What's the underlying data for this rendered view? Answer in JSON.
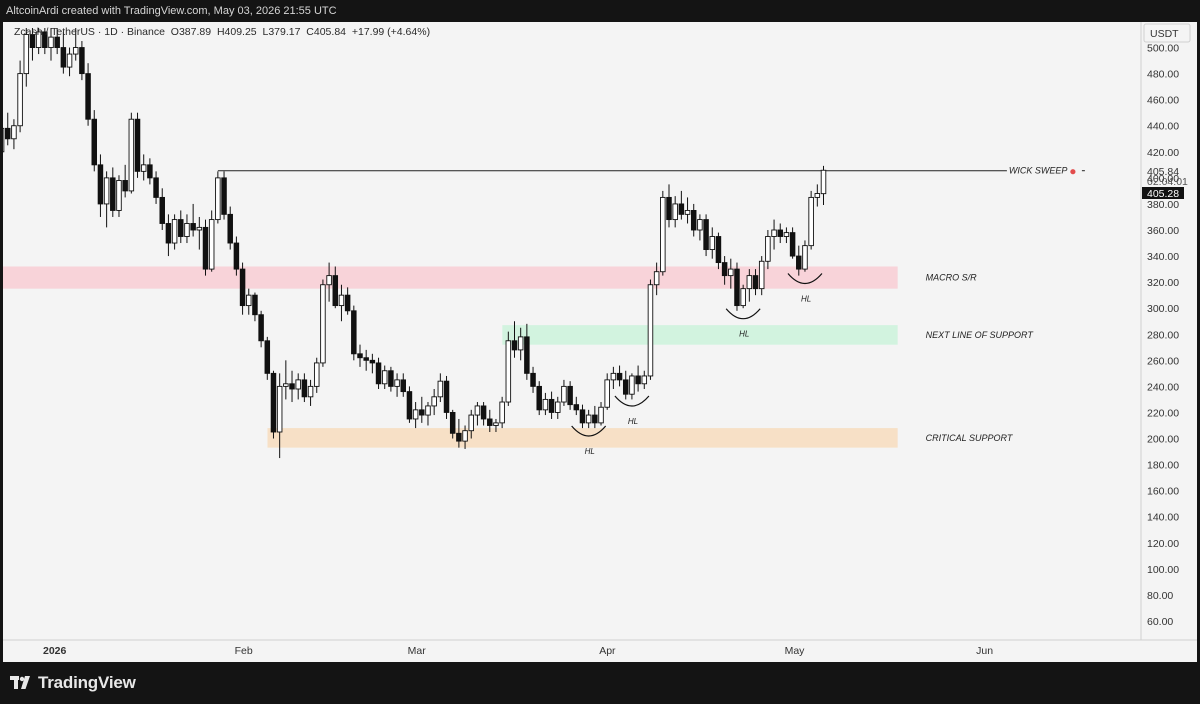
{
  "header": {
    "attribution": "AltcoinArdi created with TradingView.com, May 03, 2026 21:55 UTC"
  },
  "legend": {
    "symbol": "Zcash / TetherUS · 1D · Binance",
    "open": "O387.89",
    "high": "H409.25",
    "low": "L379.17",
    "close": "C405.84",
    "change": "+17.99 (+4.64%)"
  },
  "price_axis": {
    "currency": "USDT",
    "last_price": "405.84",
    "countdown": "02:04:01",
    "marker_price": "405.28"
  },
  "branding": {
    "name": "TradingView"
  },
  "colors": {
    "macro_zone": "#f8d3d9",
    "support_zone": "#d2f3df",
    "critical_zone": "#f7e0c6",
    "candle_up": "#ffffff",
    "candle_down": "#111111"
  },
  "chart_data": {
    "type": "candlestick",
    "ylim": [
      50,
      515
    ],
    "y_ticks": [
      "500.00",
      "480.00",
      "460.00",
      "440.00",
      "420.00",
      "400.00",
      "380.00",
      "360.00",
      "340.00",
      "320.00",
      "300.00",
      "280.00",
      "260.00",
      "240.00",
      "220.00",
      "200.00",
      "180.00",
      "160.00",
      "140.00",
      "120.00",
      "100.00",
      "80.00",
      "60.00"
    ],
    "x_ticks": [
      "2026",
      "Feb",
      "Mar",
      "Apr",
      "May",
      "Jun"
    ],
    "x_tick_dates": [
      "2026-01-01",
      "2026-02-01",
      "2026-03-01",
      "2026-04-01",
      "2026-05-01",
      "2026-06-01"
    ],
    "candles": [
      {
        "date": "2025-12-23",
        "o": 415,
        "h": 432,
        "l": 402,
        "c": 420
      },
      {
        "date": "2025-12-24",
        "o": 420,
        "h": 445,
        "l": 415,
        "c": 438
      },
      {
        "date": "2025-12-25",
        "o": 438,
        "h": 450,
        "l": 425,
        "c": 430
      },
      {
        "date": "2025-12-26",
        "o": 430,
        "h": 445,
        "l": 422,
        "c": 440
      },
      {
        "date": "2025-12-27",
        "o": 440,
        "h": 490,
        "l": 435,
        "c": 480
      },
      {
        "date": "2025-12-28",
        "o": 480,
        "h": 515,
        "l": 470,
        "c": 510
      },
      {
        "date": "2025-12-29",
        "o": 510,
        "h": 515,
        "l": 490,
        "c": 500
      },
      {
        "date": "2025-12-30",
        "o": 500,
        "h": 515,
        "l": 495,
        "c": 512
      },
      {
        "date": "2025-12-31",
        "o": 512,
        "h": 515,
        "l": 495,
        "c": 500
      },
      {
        "date": "2026-01-01",
        "o": 500,
        "h": 515,
        "l": 490,
        "c": 508
      },
      {
        "date": "2026-01-02",
        "o": 508,
        "h": 515,
        "l": 495,
        "c": 500
      },
      {
        "date": "2026-01-03",
        "o": 500,
        "h": 512,
        "l": 480,
        "c": 485
      },
      {
        "date": "2026-01-04",
        "o": 485,
        "h": 500,
        "l": 478,
        "c": 495
      },
      {
        "date": "2026-01-05",
        "o": 495,
        "h": 515,
        "l": 490,
        "c": 500
      },
      {
        "date": "2026-01-06",
        "o": 500,
        "h": 505,
        "l": 475,
        "c": 480
      },
      {
        "date": "2026-01-07",
        "o": 480,
        "h": 488,
        "l": 440,
        "c": 445
      },
      {
        "date": "2026-01-08",
        "o": 445,
        "h": 452,
        "l": 405,
        "c": 410
      },
      {
        "date": "2026-01-09",
        "o": 410,
        "h": 418,
        "l": 370,
        "c": 380
      },
      {
        "date": "2026-01-10",
        "o": 380,
        "h": 405,
        "l": 362,
        "c": 400
      },
      {
        "date": "2026-01-11",
        "o": 400,
        "h": 408,
        "l": 370,
        "c": 375
      },
      {
        "date": "2026-01-12",
        "o": 375,
        "h": 402,
        "l": 370,
        "c": 398
      },
      {
        "date": "2026-01-13",
        "o": 398,
        "h": 410,
        "l": 385,
        "c": 390
      },
      {
        "date": "2026-01-14",
        "o": 390,
        "h": 450,
        "l": 388,
        "c": 445
      },
      {
        "date": "2026-01-15",
        "o": 445,
        "h": 450,
        "l": 400,
        "c": 405
      },
      {
        "date": "2026-01-16",
        "o": 405,
        "h": 418,
        "l": 398,
        "c": 410
      },
      {
        "date": "2026-01-17",
        "o": 410,
        "h": 415,
        "l": 395,
        "c": 400
      },
      {
        "date": "2026-01-18",
        "o": 400,
        "h": 405,
        "l": 380,
        "c": 385
      },
      {
        "date": "2026-01-19",
        "o": 385,
        "h": 392,
        "l": 360,
        "c": 365
      },
      {
        "date": "2026-01-20",
        "o": 365,
        "h": 372,
        "l": 340,
        "c": 350
      },
      {
        "date": "2026-01-21",
        "o": 350,
        "h": 372,
        "l": 345,
        "c": 368
      },
      {
        "date": "2026-01-22",
        "o": 368,
        "h": 375,
        "l": 350,
        "c": 355
      },
      {
        "date": "2026-01-23",
        "o": 355,
        "h": 372,
        "l": 350,
        "c": 365
      },
      {
        "date": "2026-01-24",
        "o": 365,
        "h": 380,
        "l": 355,
        "c": 360
      },
      {
        "date": "2026-01-25",
        "o": 360,
        "h": 370,
        "l": 345,
        "c": 362
      },
      {
        "date": "2026-01-26",
        "o": 362,
        "h": 368,
        "l": 325,
        "c": 330
      },
      {
        "date": "2026-01-27",
        "o": 330,
        "h": 375,
        "l": 328,
        "c": 368
      },
      {
        "date": "2026-01-28",
        "o": 368,
        "h": 405,
        "l": 365,
        "c": 400
      },
      {
        "date": "2026-01-29",
        "o": 400,
        "h": 405,
        "l": 368,
        "c": 372
      },
      {
        "date": "2026-01-30",
        "o": 372,
        "h": 378,
        "l": 345,
        "c": 350
      },
      {
        "date": "2026-01-31",
        "o": 350,
        "h": 355,
        "l": 325,
        "c": 330
      },
      {
        "date": "2026-02-01",
        "o": 330,
        "h": 335,
        "l": 295,
        "c": 302
      },
      {
        "date": "2026-02-02",
        "o": 302,
        "h": 315,
        "l": 295,
        "c": 310
      },
      {
        "date": "2026-02-03",
        "o": 310,
        "h": 312,
        "l": 290,
        "c": 295
      },
      {
        "date": "2026-02-04",
        "o": 295,
        "h": 298,
        "l": 270,
        "c": 275
      },
      {
        "date": "2026-02-05",
        "o": 275,
        "h": 278,
        "l": 245,
        "c": 250
      },
      {
        "date": "2026-02-06",
        "o": 250,
        "h": 252,
        "l": 200,
        "c": 205
      },
      {
        "date": "2026-02-07",
        "o": 205,
        "h": 250,
        "l": 185,
        "c": 240
      },
      {
        "date": "2026-02-08",
        "o": 240,
        "h": 260,
        "l": 230,
        "c": 242
      },
      {
        "date": "2026-02-09",
        "o": 242,
        "h": 252,
        "l": 228,
        "c": 238
      },
      {
        "date": "2026-02-10",
        "o": 238,
        "h": 250,
        "l": 230,
        "c": 245
      },
      {
        "date": "2026-02-11",
        "o": 245,
        "h": 250,
        "l": 228,
        "c": 232
      },
      {
        "date": "2026-02-12",
        "o": 232,
        "h": 245,
        "l": 225,
        "c": 240
      },
      {
        "date": "2026-02-13",
        "o": 240,
        "h": 262,
        "l": 235,
        "c": 258
      },
      {
        "date": "2026-02-14",
        "o": 258,
        "h": 322,
        "l": 255,
        "c": 318
      },
      {
        "date": "2026-02-15",
        "o": 318,
        "h": 335,
        "l": 305,
        "c": 325
      },
      {
        "date": "2026-02-16",
        "o": 325,
        "h": 332,
        "l": 300,
        "c": 302
      },
      {
        "date": "2026-02-17",
        "o": 302,
        "h": 318,
        "l": 290,
        "c": 310
      },
      {
        "date": "2026-02-18",
        "o": 310,
        "h": 316,
        "l": 295,
        "c": 298
      },
      {
        "date": "2026-02-19",
        "o": 298,
        "h": 302,
        "l": 260,
        "c": 265
      },
      {
        "date": "2026-02-20",
        "o": 265,
        "h": 272,
        "l": 255,
        "c": 262
      },
      {
        "date": "2026-02-21",
        "o": 262,
        "h": 268,
        "l": 252,
        "c": 260
      },
      {
        "date": "2026-02-22",
        "o": 260,
        "h": 265,
        "l": 250,
        "c": 258
      },
      {
        "date": "2026-02-23",
        "o": 258,
        "h": 262,
        "l": 238,
        "c": 242
      },
      {
        "date": "2026-02-24",
        "o": 242,
        "h": 256,
        "l": 238,
        "c": 252
      },
      {
        "date": "2026-02-25",
        "o": 252,
        "h": 255,
        "l": 236,
        "c": 240
      },
      {
        "date": "2026-02-26",
        "o": 240,
        "h": 250,
        "l": 232,
        "c": 245
      },
      {
        "date": "2026-02-27",
        "o": 245,
        "h": 250,
        "l": 232,
        "c": 236
      },
      {
        "date": "2026-02-28",
        "o": 236,
        "h": 240,
        "l": 212,
        "c": 215
      },
      {
        "date": "2026-03-01",
        "o": 215,
        "h": 228,
        "l": 208,
        "c": 222
      },
      {
        "date": "2026-03-02",
        "o": 222,
        "h": 232,
        "l": 212,
        "c": 218
      },
      {
        "date": "2026-03-03",
        "o": 218,
        "h": 228,
        "l": 210,
        "c": 225
      },
      {
        "date": "2026-03-04",
        "o": 225,
        "h": 238,
        "l": 218,
        "c": 232
      },
      {
        "date": "2026-03-05",
        "o": 232,
        "h": 250,
        "l": 228,
        "c": 244
      },
      {
        "date": "2026-03-06",
        "o": 244,
        "h": 248,
        "l": 215,
        "c": 220
      },
      {
        "date": "2026-03-07",
        "o": 220,
        "h": 222,
        "l": 200,
        "c": 204
      },
      {
        "date": "2026-03-08",
        "o": 204,
        "h": 215,
        "l": 193,
        "c": 198
      },
      {
        "date": "2026-03-09",
        "o": 198,
        "h": 210,
        "l": 192,
        "c": 206
      },
      {
        "date": "2026-03-10",
        "o": 206,
        "h": 222,
        "l": 200,
        "c": 218
      },
      {
        "date": "2026-03-11",
        "o": 218,
        "h": 228,
        "l": 210,
        "c": 225
      },
      {
        "date": "2026-03-12",
        "o": 225,
        "h": 228,
        "l": 210,
        "c": 215
      },
      {
        "date": "2026-03-13",
        "o": 215,
        "h": 222,
        "l": 205,
        "c": 210
      },
      {
        "date": "2026-03-14",
        "o": 210,
        "h": 215,
        "l": 205,
        "c": 212
      },
      {
        "date": "2026-03-15",
        "o": 212,
        "h": 232,
        "l": 208,
        "c": 228
      },
      {
        "date": "2026-03-16",
        "o": 228,
        "h": 282,
        "l": 225,
        "c": 275
      },
      {
        "date": "2026-03-17",
        "o": 275,
        "h": 290,
        "l": 262,
        "c": 268
      },
      {
        "date": "2026-03-18",
        "o": 268,
        "h": 285,
        "l": 260,
        "c": 278
      },
      {
        "date": "2026-03-19",
        "o": 278,
        "h": 288,
        "l": 245,
        "c": 250
      },
      {
        "date": "2026-03-20",
        "o": 250,
        "h": 255,
        "l": 235,
        "c": 240
      },
      {
        "date": "2026-03-21",
        "o": 240,
        "h": 244,
        "l": 218,
        "c": 222
      },
      {
        "date": "2026-03-22",
        "o": 222,
        "h": 235,
        "l": 218,
        "c": 230
      },
      {
        "date": "2026-03-23",
        "o": 230,
        "h": 236,
        "l": 215,
        "c": 220
      },
      {
        "date": "2026-03-24",
        "o": 220,
        "h": 232,
        "l": 215,
        "c": 228
      },
      {
        "date": "2026-03-25",
        "o": 228,
        "h": 245,
        "l": 225,
        "c": 240
      },
      {
        "date": "2026-03-26",
        "o": 240,
        "h": 244,
        "l": 222,
        "c": 226
      },
      {
        "date": "2026-03-27",
        "o": 226,
        "h": 232,
        "l": 218,
        "c": 222
      },
      {
        "date": "2026-03-28",
        "o": 222,
        "h": 226,
        "l": 208,
        "c": 212
      },
      {
        "date": "2026-03-29",
        "o": 212,
        "h": 222,
        "l": 208,
        "c": 218
      },
      {
        "date": "2026-03-30",
        "o": 218,
        "h": 225,
        "l": 208,
        "c": 212
      },
      {
        "date": "2026-03-31",
        "o": 212,
        "h": 228,
        "l": 210,
        "c": 224
      },
      {
        "date": "2026-04-01",
        "o": 224,
        "h": 250,
        "l": 222,
        "c": 245
      },
      {
        "date": "2026-04-02",
        "o": 245,
        "h": 255,
        "l": 238,
        "c": 250
      },
      {
        "date": "2026-04-03",
        "o": 250,
        "h": 256,
        "l": 240,
        "c": 245
      },
      {
        "date": "2026-04-04",
        "o": 245,
        "h": 252,
        "l": 230,
        "c": 234
      },
      {
        "date": "2026-04-05",
        "o": 234,
        "h": 250,
        "l": 230,
        "c": 248
      },
      {
        "date": "2026-04-06",
        "o": 248,
        "h": 256,
        "l": 236,
        "c": 242
      },
      {
        "date": "2026-04-07",
        "o": 242,
        "h": 252,
        "l": 238,
        "c": 248
      },
      {
        "date": "2026-04-08",
        "o": 248,
        "h": 322,
        "l": 245,
        "c": 318
      },
      {
        "date": "2026-04-09",
        "o": 318,
        "h": 335,
        "l": 310,
        "c": 328
      },
      {
        "date": "2026-04-10",
        "o": 328,
        "h": 390,
        "l": 325,
        "c": 385
      },
      {
        "date": "2026-04-11",
        "o": 385,
        "h": 395,
        "l": 362,
        "c": 368
      },
      {
        "date": "2026-04-12",
        "o": 368,
        "h": 386,
        "l": 362,
        "c": 380
      },
      {
        "date": "2026-04-13",
        "o": 380,
        "h": 390,
        "l": 368,
        "c": 372
      },
      {
        "date": "2026-04-14",
        "o": 372,
        "h": 385,
        "l": 365,
        "c": 375
      },
      {
        "date": "2026-04-15",
        "o": 375,
        "h": 380,
        "l": 355,
        "c": 360
      },
      {
        "date": "2026-04-16",
        "o": 360,
        "h": 372,
        "l": 352,
        "c": 368
      },
      {
        "date": "2026-04-17",
        "o": 368,
        "h": 372,
        "l": 340,
        "c": 345
      },
      {
        "date": "2026-04-18",
        "o": 345,
        "h": 362,
        "l": 338,
        "c": 355
      },
      {
        "date": "2026-04-19",
        "o": 355,
        "h": 358,
        "l": 330,
        "c": 335
      },
      {
        "date": "2026-04-20",
        "o": 335,
        "h": 340,
        "l": 318,
        "c": 325
      },
      {
        "date": "2026-04-21",
        "o": 325,
        "h": 338,
        "l": 315,
        "c": 330
      },
      {
        "date": "2026-04-22",
        "o": 330,
        "h": 335,
        "l": 298,
        "c": 302
      },
      {
        "date": "2026-04-23",
        "o": 302,
        "h": 318,
        "l": 300,
        "c": 315
      },
      {
        "date": "2026-04-24",
        "o": 315,
        "h": 330,
        "l": 305,
        "c": 325
      },
      {
        "date": "2026-04-25",
        "o": 325,
        "h": 330,
        "l": 310,
        "c": 315
      },
      {
        "date": "2026-04-26",
        "o": 315,
        "h": 340,
        "l": 310,
        "c": 336
      },
      {
        "date": "2026-04-27",
        "o": 336,
        "h": 360,
        "l": 330,
        "c": 355
      },
      {
        "date": "2026-04-28",
        "o": 355,
        "h": 368,
        "l": 345,
        "c": 360
      },
      {
        "date": "2026-04-29",
        "o": 360,
        "h": 365,
        "l": 350,
        "c": 355
      },
      {
        "date": "2026-04-30",
        "o": 355,
        "h": 362,
        "l": 350,
        "c": 358
      },
      {
        "date": "2026-05-01",
        "o": 358,
        "h": 362,
        "l": 338,
        "c": 340
      },
      {
        "date": "2026-05-02",
        "o": 340,
        "h": 348,
        "l": 325,
        "c": 330
      },
      {
        "date": "2026-05-03",
        "o": 330,
        "h": 352,
        "l": 328,
        "c": 348
      },
      {
        "date": "2026-05-04",
        "o": 348,
        "h": 390,
        "l": 345,
        "c": 385
      },
      {
        "date": "2026-05-05",
        "o": 385,
        "h": 395,
        "l": 378,
        "c": 388
      },
      {
        "date": "2026-05-06",
        "o": 387.89,
        "h": 409.25,
        "l": 379.17,
        "c": 405.84
      }
    ],
    "zones": [
      {
        "name": "macro-sr",
        "label": "MACRO S/R",
        "from": 315,
        "to": 332,
        "start": "2025-12-23",
        "end": "2026-05-18",
        "color": "#f8d3d9"
      },
      {
        "name": "next-support",
        "label": "NEXT LINE OF SUPPORT",
        "from": 272,
        "to": 287,
        "start": "2026-03-16",
        "end": "2026-05-18",
        "color": "#d2f3df"
      },
      {
        "name": "critical-support",
        "label": "CRITICAL SUPPORT",
        "from": 193,
        "to": 208,
        "start": "2026-02-06",
        "end": "2026-05-18",
        "color": "#f7e0c6"
      }
    ],
    "lines": [
      {
        "name": "wick-sweep",
        "label": "WICK SWEEP",
        "price": 405.5,
        "start": "2026-01-28",
        "end": "2026-06-05"
      }
    ],
    "hl_marks": [
      {
        "label": "HL",
        "date": "2026-03-29",
        "price": 205
      },
      {
        "label": "HL",
        "date": "2026-04-05",
        "price": 228
      },
      {
        "label": "HL",
        "date": "2026-04-23",
        "price": 295
      },
      {
        "label": "HL",
        "date": "2026-05-03",
        "price": 322
      }
    ]
  }
}
